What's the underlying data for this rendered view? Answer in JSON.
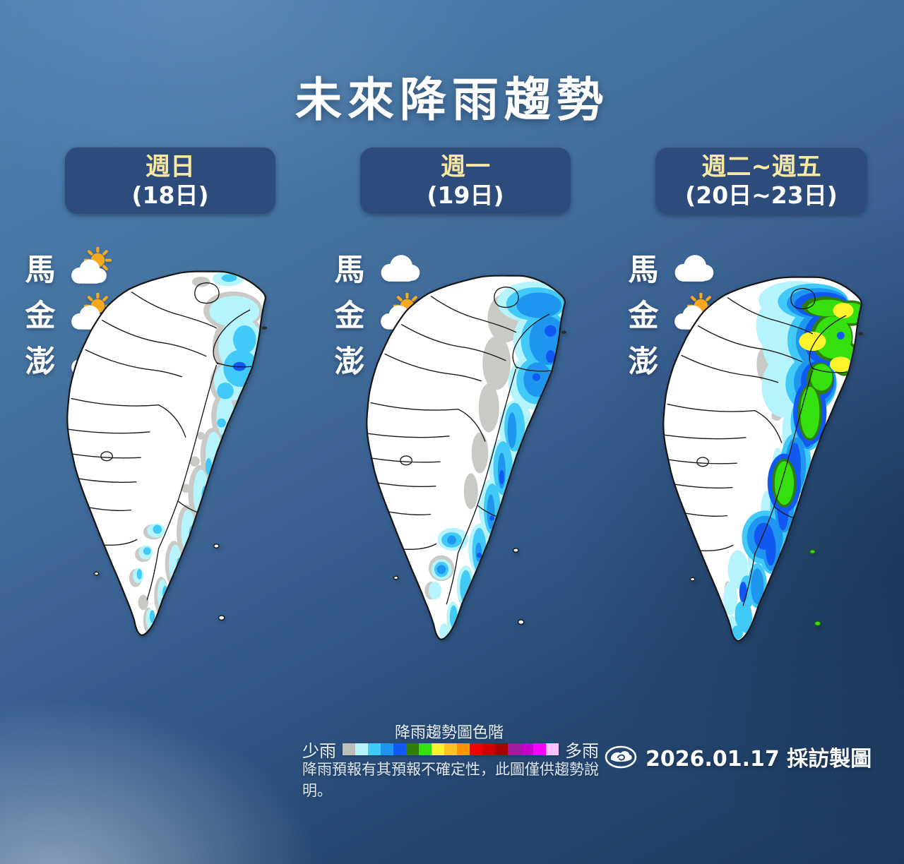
{
  "title": "未來降雨趨勢",
  "panels": [
    {
      "weekday": "週日",
      "date_range": "(18日)",
      "regions": [
        {
          "name": "馬",
          "icon": "partly-sunny"
        },
        {
          "name": "金",
          "icon": "partly-sunny"
        },
        {
          "name": "澎",
          "icon": "partly-sunny"
        }
      ]
    },
    {
      "weekday": "週一",
      "date_range": "(19日)",
      "regions": [
        {
          "name": "馬",
          "icon": "cloudy"
        },
        {
          "name": "金",
          "icon": "partly-sunny"
        },
        {
          "name": "澎",
          "icon": "cloudy"
        }
      ]
    },
    {
      "weekday": "週二~週五",
      "date_range": "(20日~23日)",
      "regions": [
        {
          "name": "馬",
          "icon": "cloudy"
        },
        {
          "name": "金",
          "icon": "partly-sunny"
        },
        {
          "name": "澎",
          "icon": "cloudy"
        }
      ]
    }
  ],
  "legend": {
    "title": "降雨趨勢圖色階",
    "low_label": "少雨",
    "high_label": "多雨",
    "colors": [
      "#bdbdba",
      "#b6f4fd",
      "#41c9f7",
      "#1e96f0",
      "#1159f2",
      "#2f7d0a",
      "#35e00e",
      "#fdf32b",
      "#fdc31e",
      "#fd9400",
      "#f00000",
      "#d00000",
      "#a80000",
      "#9c1e9c",
      "#c800c8",
      "#fa00fa",
      "#fec2fe"
    ],
    "disclaimer": "降雨預報有其預報不確定性，此圖僅供趨勢說明。"
  },
  "footer": {
    "credit": "2026.01.17 採訪製圖",
    "logo": "cwa-cloud-logo"
  },
  "colors": {
    "header_pill_bg": "#2d4b7b",
    "header_weekday_text": "#f6e7a1",
    "header_date_text": "#ffffff",
    "title_text": "#ffffff",
    "map_gray": "#c9c9c6",
    "map_pale_cyan": "#b6f4fd",
    "map_cyan": "#41c9f7",
    "map_light_blue": "#1e96f0",
    "map_deep_blue": "#1159f2",
    "map_dark_green": "#2f7d0a",
    "map_green": "#35e00e",
    "map_yellow": "#fdf32b"
  }
}
